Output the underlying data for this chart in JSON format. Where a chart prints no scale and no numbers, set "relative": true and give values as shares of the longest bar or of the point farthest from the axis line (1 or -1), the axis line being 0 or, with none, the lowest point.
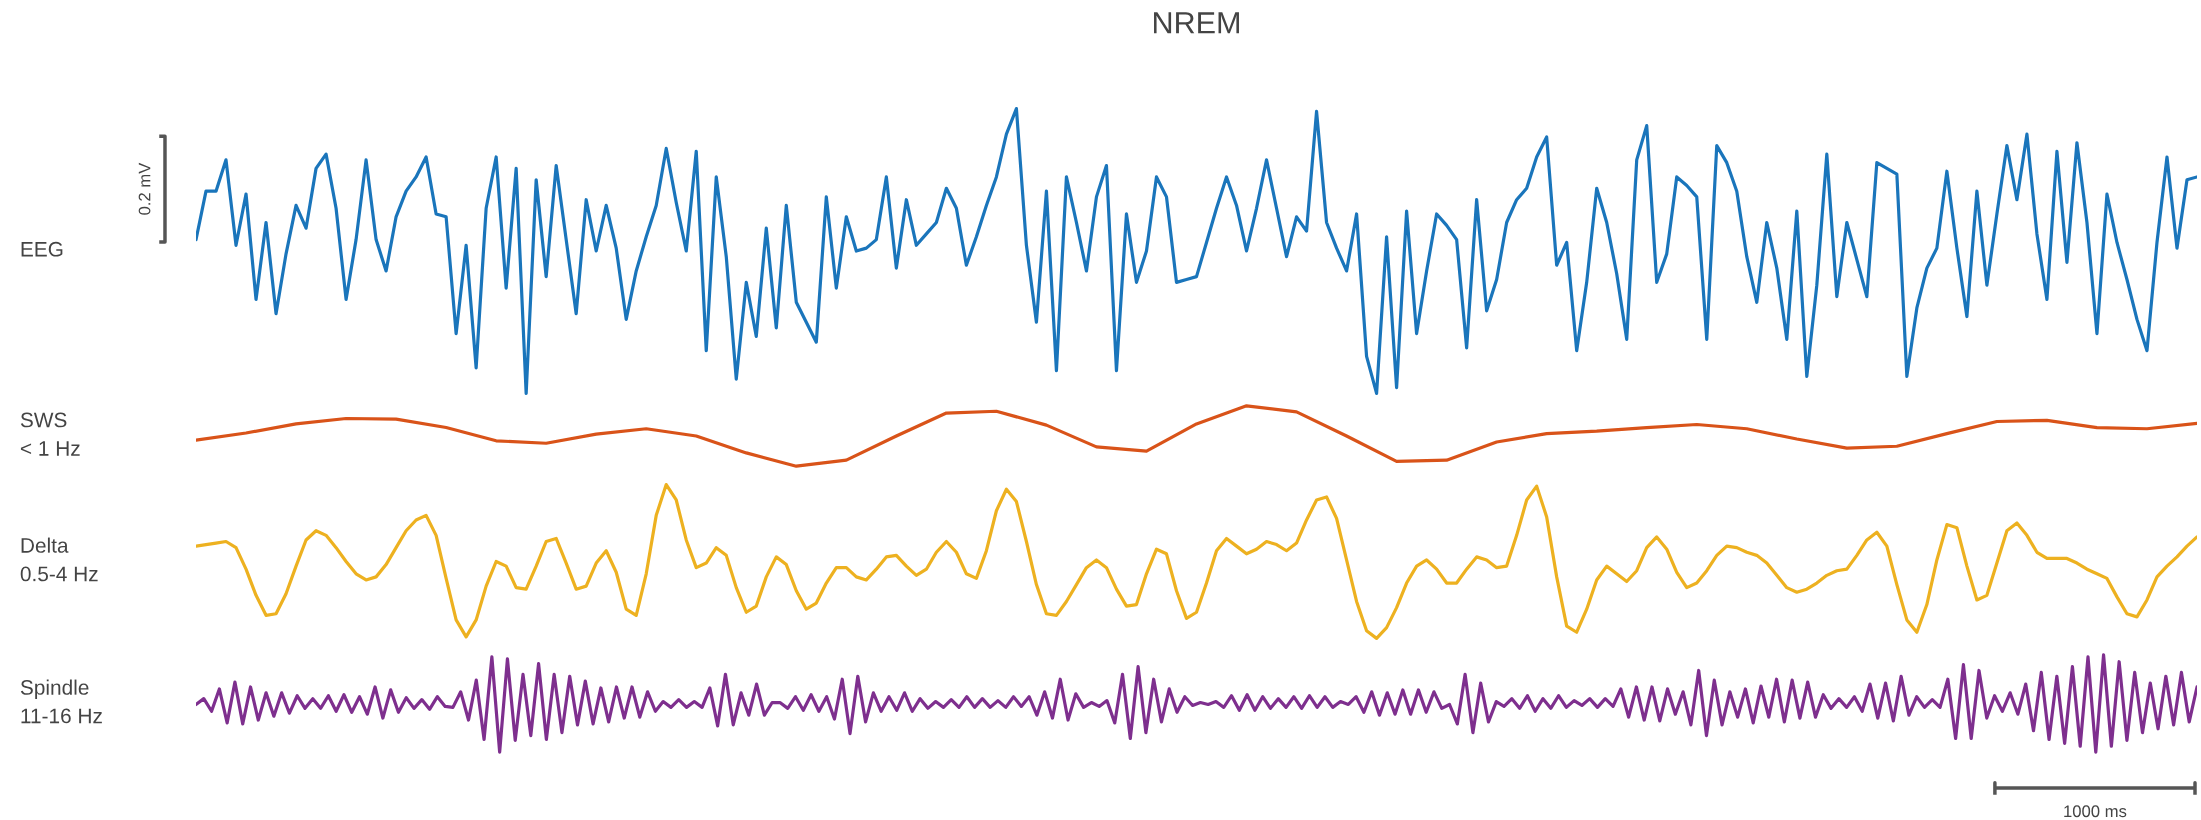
{
  "chart_data": [
    {
      "type": "line",
      "title": "NREM",
      "ylabel": "EEG",
      "relative": true,
      "tick_labels": false,
      "annotations": [
        "0.2 mV"
      ],
      "categories": [
        null,
        null,
        null,
        null,
        null,
        null,
        null,
        null,
        null,
        null,
        null,
        null,
        null,
        null,
        null,
        null,
        null,
        null,
        null,
        null,
        null,
        null,
        null,
        null,
        null,
        null,
        null,
        null,
        null,
        null,
        null,
        null,
        null,
        null,
        null,
        null,
        null,
        null,
        null,
        null,
        null,
        null,
        null,
        null,
        null,
        null,
        null,
        null,
        null,
        null,
        null,
        null,
        null,
        null,
        null,
        null,
        null,
        null,
        null,
        null,
        null,
        null,
        null,
        null,
        null,
        null,
        null,
        null,
        null,
        null,
        null,
        null,
        null,
        null,
        null,
        null,
        null,
        null,
        null,
        null,
        null,
        null,
        null,
        null,
        null,
        null,
        null,
        null,
        null,
        null,
        null,
        null,
        null,
        null,
        null,
        null,
        null,
        null,
        null,
        null,
        null,
        null,
        null,
        null,
        null,
        null,
        null,
        null,
        null,
        null,
        null,
        null,
        null,
        null,
        null,
        null,
        null,
        null,
        null,
        null,
        null,
        null,
        null,
        null,
        null,
        null,
        null,
        null,
        null,
        null,
        null,
        null,
        null,
        null,
        null,
        null,
        null,
        null,
        null,
        null,
        null,
        null,
        null,
        null,
        null,
        null,
        null,
        null,
        null,
        null,
        null,
        null,
        null,
        null,
        null,
        null,
        null,
        null,
        null,
        null,
        null,
        null,
        null,
        null,
        null,
        null,
        null,
        null,
        null,
        null,
        null,
        null,
        null,
        null,
        null,
        null,
        null,
        null,
        null,
        null,
        null,
        null,
        null,
        null,
        null,
        null,
        null,
        null,
        null,
        null,
        null,
        null,
        null,
        null,
        null,
        null,
        null,
        null,
        null,
        null,
        null
      ],
      "series": [
        {
          "color": "#1a75bb",
          "values": [
            0.54,
            0.71,
            0.71,
            0.82,
            0.52,
            0.7,
            0.33,
            0.6,
            0.28,
            0.49,
            0.66,
            0.58,
            0.79,
            0.84,
            0.65,
            0.33,
            0.54,
            0.82,
            0.54,
            0.43,
            0.62,
            0.71,
            0.76,
            0.83,
            0.63,
            0.62,
            0.21,
            0.52,
            0.09,
            0.65,
            0.83,
            0.37,
            0.79,
            0,
            0.75,
            0.41,
            0.8,
            0.54,
            0.28,
            0.68,
            0.5,
            0.66,
            0.51,
            0.26,
            0.43,
            0.55,
            0.66,
            0.86,
            0.67,
            0.5,
            0.85,
            0.15,
            0.76,
            0.48,
            0.05,
            0.39,
            0.2,
            0.58,
            0.23,
            0.66,
            0.32,
            0.25,
            0.18,
            0.69,
            0.37,
            0.62,
            0.5,
            0.51,
            0.54,
            0.76,
            0.44,
            0.68,
            0.52,
            0.56,
            0.6,
            0.72,
            0.65,
            0.45,
            0.55,
            0.66,
            0.76,
            0.91,
            1,
            0.52,
            0.25,
            0.71,
            0.08,
            0.76,
            0.6,
            0.43,
            0.69,
            0.8,
            0.08,
            0.63,
            0.39,
            0.5,
            0.76,
            0.69,
            0.39,
            0.4,
            0.41,
            0.53,
            0.65,
            0.76,
            0.66,
            0.5,
            0.65,
            0.82,
            0.65,
            0.48,
            0.62,
            0.57,
            0.99,
            0.6,
            0.51,
            0.43,
            0.63,
            0.13,
            0,
            0.55,
            0.02,
            0.64,
            0.21,
            0.43,
            0.63,
            0.59,
            0.54,
            0.16,
            0.68,
            0.29,
            0.4,
            0.6,
            0.68,
            0.72,
            0.83,
            0.9,
            0.45,
            0.53,
            0.15,
            0.39,
            0.72,
            0.6,
            0.42,
            0.19,
            0.82,
            0.94,
            0.39,
            0.49,
            0.76,
            0.73,
            0.69,
            0.19,
            0.87,
            0.81,
            0.71,
            0.48,
            0.32,
            0.6,
            0.44,
            0.19,
            0.64,
            0.06,
            0.38,
            0.84,
            0.34,
            0.6,
            0.47,
            0.34,
            0.81,
            0.79,
            0.77,
            0.06,
            0.3,
            0.44,
            0.51,
            0.78,
            0.51,
            0.27,
            0.71,
            0.38,
            0.63,
            0.87,
            0.68,
            0.91,
            0.56,
            0.33,
            0.85,
            0.46,
            0.88,
            0.6,
            0.21,
            0.7,
            0.53,
            0.4,
            0.26,
            0.15,
            0.53,
            0.83,
            0.51,
            0.75,
            0.76
          ]
        }
      ]
    },
    {
      "type": "line",
      "ylabel": "SWS\n< 1 Hz",
      "relative": true,
      "tick_labels": false,
      "categories": [
        null,
        null,
        null,
        null,
        null,
        null,
        null,
        null,
        null,
        null,
        null,
        null,
        null,
        null,
        null,
        null,
        null,
        null,
        null,
        null,
        null,
        null,
        null,
        null,
        null,
        null,
        null,
        null,
        null,
        null,
        null,
        null,
        null,
        null,
        null,
        null,
        null,
        null,
        null,
        null,
        null
      ],
      "series": [
        {
          "color": "#d95319",
          "values": [
            0.43,
            0.55,
            0.7,
            0.79,
            0.78,
            0.64,
            0.42,
            0.38,
            0.53,
            0.62,
            0.5,
            0.22,
            0,
            0.1,
            0.5,
            0.88,
            0.91,
            0.68,
            0.32,
            0.25,
            0.7,
            1,
            0.9,
            0.5,
            0.08,
            0.1,
            0.4,
            0.54,
            0.58,
            0.64,
            0.69,
            0.62,
            0.45,
            0.3,
            0.33,
            0.54,
            0.74,
            0.76,
            0.64,
            0.62,
            0.71
          ]
        }
      ]
    },
    {
      "type": "line",
      "ylabel": "Delta\n0.5-4 Hz",
      "relative": true,
      "tick_labels": false,
      "categories": [
        null,
        null,
        null,
        null,
        null,
        null,
        null,
        null,
        null,
        null,
        null,
        null,
        null,
        null,
        null,
        null,
        null,
        null,
        null,
        null,
        null,
        null,
        null,
        null,
        null,
        null,
        null,
        null,
        null,
        null,
        null,
        null,
        null,
        null,
        null,
        null,
        null,
        null,
        null,
        null,
        null,
        null,
        null,
        null,
        null,
        null,
        null,
        null,
        null,
        null,
        null,
        null,
        null,
        null,
        null,
        null,
        null,
        null,
        null,
        null,
        null,
        null,
        null,
        null,
        null,
        null,
        null,
        null,
        null,
        null,
        null,
        null,
        null,
        null,
        null,
        null,
        null,
        null,
        null,
        null,
        null,
        null,
        null,
        null,
        null,
        null,
        null,
        null,
        null,
        null,
        null,
        null,
        null,
        null,
        null,
        null,
        null,
        null,
        null,
        null,
        null,
        null,
        null,
        null,
        null,
        null,
        null,
        null,
        null,
        null,
        null,
        null,
        null,
        null,
        null,
        null,
        null,
        null,
        null,
        null,
        null,
        null,
        null,
        null,
        null,
        null,
        null,
        null,
        null,
        null,
        null,
        null,
        null,
        null,
        null,
        null,
        null,
        null,
        null,
        null,
        null,
        null,
        null,
        null,
        null,
        null,
        null,
        null,
        null,
        null,
        null,
        null,
        null,
        null,
        null,
        null,
        null,
        null,
        null,
        null,
        null,
        null,
        null,
        null,
        null,
        null,
        null,
        null,
        null,
        null,
        null,
        null,
        null,
        null,
        null,
        null,
        null,
        null,
        null,
        null,
        null,
        null,
        null,
        null,
        null,
        null,
        null,
        null,
        null,
        null,
        null,
        null,
        null,
        null,
        null,
        null,
        null,
        null,
        null,
        null,
        null
      ],
      "series": [
        {
          "color": "#edb120",
          "values": [
            0.6,
            0.61,
            0.62,
            0.63,
            0.59,
            0.45,
            0.28,
            0.15,
            0.16,
            0.29,
            0.47,
            0.64,
            0.7,
            0.67,
            0.59,
            0.5,
            0.42,
            0.38,
            0.4,
            0.48,
            0.59,
            0.7,
            0.77,
            0.8,
            0.67,
            0.39,
            0.12,
            0.01,
            0.12,
            0.34,
            0.5,
            0.47,
            0.33,
            0.32,
            0.47,
            0.63,
            0.65,
            0.49,
            0.32,
            0.34,
            0.49,
            0.57,
            0.43,
            0.19,
            0.15,
            0.42,
            0.8,
            1.0,
            0.9,
            0.64,
            0.46,
            0.49,
            0.59,
            0.54,
            0.33,
            0.17,
            0.21,
            0.4,
            0.53,
            0.48,
            0.31,
            0.19,
            0.23,
            0.36,
            0.46,
            0.46,
            0.4,
            0.38,
            0.45,
            0.53,
            0.54,
            0.47,
            0.41,
            0.45,
            0.56,
            0.63,
            0.56,
            0.42,
            0.39,
            0.57,
            0.83,
            0.97,
            0.89,
            0.63,
            0.35,
            0.16,
            0.15,
            0.24,
            0.35,
            0.46,
            0.51,
            0.46,
            0.32,
            0.21,
            0.22,
            0.42,
            0.58,
            0.55,
            0.31,
            0.13,
            0.17,
            0.36,
            0.57,
            0.65,
            0.6,
            0.55,
            0.58,
            0.63,
            0.61,
            0.57,
            0.62,
            0.77,
            0.9,
            0.92,
            0.78,
            0.51,
            0.24,
            0.05,
            0,
            0.07,
            0.2,
            0.36,
            0.47,
            0.51,
            0.45,
            0.36,
            0.36,
            0.45,
            0.53,
            0.51,
            0.46,
            0.47,
            0.67,
            0.9,
            0.99,
            0.79,
            0.4,
            0.08,
            0.04,
            0.19,
            0.38,
            0.47,
            0.42,
            0.37,
            0.44,
            0.59,
            0.66,
            0.58,
            0.43,
            0.33,
            0.36,
            0.44,
            0.54,
            0.6,
            0.59,
            0.56,
            0.54,
            0.49,
            0.41,
            0.33,
            0.3,
            0.32,
            0.36,
            0.41,
            0.44,
            0.45,
            0.54,
            0.64,
            0.69,
            0.6,
            0.35,
            0.12,
            0.04,
            0.22,
            0.51,
            0.74,
            0.72,
            0.47,
            0.25,
            0.28,
            0.49,
            0.7,
            0.75,
            0.67,
            0.56,
            0.52,
            0.52,
            0.52,
            0.49,
            0.45,
            0.42,
            0.39,
            0.27,
            0.16,
            0.14,
            0.25,
            0.4,
            0.47,
            0.53,
            0.6,
            0.66
          ]
        }
      ]
    },
    {
      "type": "line",
      "ylabel": "Spindle\n11-16 Hz",
      "relative": true,
      "tick_labels": false,
      "annotations": [
        "1000 ms"
      ],
      "categories": [
        null,
        null,
        null,
        null,
        null,
        null,
        null,
        null,
        null,
        null,
        null,
        null,
        null,
        null,
        null,
        null,
        null,
        null,
        null,
        null,
        null,
        null,
        null,
        null,
        null,
        null,
        null,
        null,
        null,
        null,
        null,
        null,
        null,
        null,
        null,
        null,
        null,
        null,
        null,
        null,
        null,
        null,
        null,
        null,
        null,
        null,
        null,
        null,
        null,
        null,
        null,
        null,
        null,
        null,
        null,
        null,
        null,
        null,
        null,
        null,
        null,
        null,
        null,
        null,
        null,
        null,
        null,
        null,
        null,
        null,
        null,
        null,
        null,
        null,
        null,
        null,
        null,
        null,
        null,
        null,
        null,
        null,
        null,
        null,
        null,
        null,
        null,
        null,
        null,
        null,
        null,
        null,
        null,
        null,
        null,
        null,
        null,
        null,
        null,
        null,
        null,
        null,
        null,
        null,
        null,
        null,
        null,
        null,
        null,
        null,
        null,
        null,
        null,
        null,
        null,
        null,
        null,
        null,
        null,
        null,
        null,
        null,
        null,
        null,
        null,
        null,
        null,
        null,
        null,
        null,
        null,
        null,
        null,
        null,
        null,
        null,
        null,
        null,
        null,
        null,
        null,
        null,
        null,
        null,
        null,
        null,
        null,
        null,
        null,
        null,
        null,
        null,
        null,
        null,
        null,
        null,
        null,
        null,
        null,
        null,
        null,
        null,
        null,
        null,
        null,
        null,
        null,
        null,
        null,
        null,
        null,
        null,
        null,
        null,
        null,
        null,
        null,
        null,
        null,
        null,
        null,
        null,
        null,
        null,
        null,
        null,
        null,
        null,
        null,
        null,
        null,
        null,
        null,
        null,
        null,
        null,
        null,
        null,
        null,
        null,
        null,
        null,
        null,
        null,
        null,
        null,
        null,
        null,
        null,
        null,
        null,
        null,
        null,
        null,
        null,
        null,
        null,
        null,
        null,
        null,
        null,
        null,
        null,
        null,
        null,
        null,
        null,
        null,
        null,
        null,
        null,
        null,
        null,
        null,
        null,
        null,
        null,
        null,
        null,
        null,
        null,
        null,
        null,
        null,
        null,
        null,
        null,
        null,
        null,
        null,
        null,
        null,
        null,
        null,
        null,
        null,
        null,
        null
      ],
      "series": [
        {
          "color": "#7e2f8e",
          "values": [
            0.49,
            0.55,
            0.42,
            0.65,
            0.3,
            0.72,
            0.29,
            0.67,
            0.33,
            0.61,
            0.37,
            0.61,
            0.4,
            0.58,
            0.45,
            0.55,
            0.45,
            0.58,
            0.42,
            0.59,
            0.41,
            0.57,
            0.39,
            0.67,
            0.35,
            0.64,
            0.41,
            0.56,
            0.45,
            0.54,
            0.44,
            0.57,
            0.47,
            0.46,
            0.62,
            0.33,
            0.74,
            0.13,
            0.98,
            0.0,
            0.96,
            0.12,
            0.8,
            0.17,
            0.91,
            0.13,
            0.8,
            0.2,
            0.78,
            0.28,
            0.73,
            0.29,
            0.66,
            0.31,
            0.67,
            0.35,
            0.67,
            0.36,
            0.62,
            0.42,
            0.52,
            0.46,
            0.54,
            0.46,
            0.52,
            0.46,
            0.66,
            0.27,
            0.8,
            0.28,
            0.61,
            0.38,
            0.7,
            0.38,
            0.51,
            0.51,
            0.45,
            0.57,
            0.43,
            0.59,
            0.42,
            0.57,
            0.34,
            0.75,
            0.19,
            0.78,
            0.31,
            0.61,
            0.42,
            0.57,
            0.43,
            0.61,
            0.42,
            0.55,
            0.45,
            0.52,
            0.46,
            0.54,
            0.46,
            0.57,
            0.46,
            0.55,
            0.46,
            0.53,
            0.46,
            0.57,
            0.47,
            0.57,
            0.38,
            0.62,
            0.35,
            0.75,
            0.33,
            0.6,
            0.46,
            0.51,
            0.47,
            0.53,
            0.3,
            0.8,
            0.14,
            0.88,
            0.2,
            0.75,
            0.31,
            0.65,
            0.41,
            0.57,
            0.48,
            0.51,
            0.49,
            0.52,
            0.46,
            0.58,
            0.43,
            0.59,
            0.43,
            0.57,
            0.45,
            0.55,
            0.46,
            0.57,
            0.45,
            0.58,
            0.46,
            0.57,
            0.46,
            0.52,
            0.49,
            0.57,
            0.41,
            0.62,
            0.38,
            0.61,
            0.39,
            0.64,
            0.39,
            0.64,
            0.41,
            0.62,
            0.45,
            0.49,
            0.29,
            0.8,
            0.2,
            0.71,
            0.31,
            0.52,
            0.47,
            0.55,
            0.45,
            0.58,
            0.42,
            0.55,
            0.45,
            0.58,
            0.46,
            0.53,
            0.48,
            0.55,
            0.46,
            0.55,
            0.47,
            0.65,
            0.36,
            0.67,
            0.33,
            0.67,
            0.32,
            0.65,
            0.39,
            0.62,
            0.28,
            0.84,
            0.17,
            0.74,
            0.28,
            0.62,
            0.36,
            0.65,
            0.3,
            0.68,
            0.36,
            0.75,
            0.31,
            0.74,
            0.35,
            0.72,
            0.36,
            0.59,
            0.45,
            0.55,
            0.46,
            0.57,
            0.42,
            0.7,
            0.35,
            0.71,
            0.32,
            0.78,
            0.38,
            0.57,
            0.46,
            0.54,
            0.46,
            0.75,
            0.14,
            0.9,
            0.14,
            0.84,
            0.35,
            0.58,
            0.42,
            0.61,
            0.39,
            0.7,
            0.22,
            0.82,
            0.13,
            0.78,
            0.09,
            0.88,
            0.06,
            0.98,
            0.0,
            1.0,
            0.06,
            0.93,
            0.12,
            0.82,
            0.2,
            0.71,
            0.24,
            0.78,
            0.28,
            0.82,
            0.31,
            0.67
          ]
        }
      ]
    }
  ]
}
